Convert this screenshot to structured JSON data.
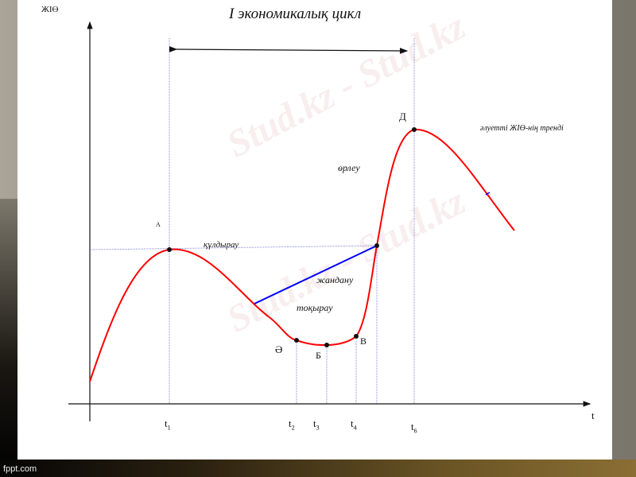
{
  "footer": "fppt.com",
  "watermark": "Stud.kz - Stud.kz",
  "diagram": {
    "title": "I экономикалық цикл",
    "y_axis_label": "ЖІӨ",
    "x_axis_label": "t",
    "points": {
      "a": "А",
      "d": "Д",
      "ae": "Ә",
      "b": "Б",
      "v": "В"
    },
    "phases": {
      "peak": "құлдырау",
      "recovery": "жандану",
      "stagnation": "тоқырау",
      "growth": "өрлеу"
    },
    "trend": "әлуетті ЖІӨ-нің тренді",
    "ticks": [
      {
        "t": "t",
        "sub": "1"
      },
      {
        "t": "t",
        "sub": "2"
      },
      {
        "t": "t",
        "sub": "3"
      },
      {
        "t": "t",
        "sub": "4"
      },
      {
        "t": "t",
        "sub": "6"
      }
    ],
    "colors": {
      "curve": "#ff0000",
      "recovery_line": "#0000ff",
      "guides": "#6a6ad0"
    }
  }
}
